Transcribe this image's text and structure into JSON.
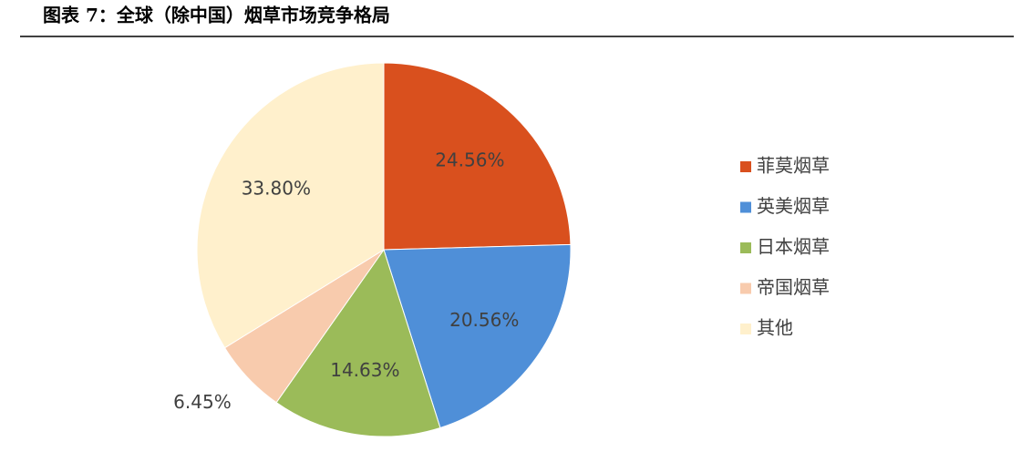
{
  "chart_data": {
    "type": "pie",
    "title": "图表 7：全球（除中国）烟草市场竞争格局",
    "categories": [
      "菲莫烟草",
      "英美烟草",
      "日本烟草",
      "帝国烟草",
      "其他"
    ],
    "values": [
      24.56,
      20.56,
      14.63,
      6.45,
      33.8
    ],
    "value_labels": [
      "24.56%",
      "20.56%",
      "14.63%",
      "6.45%",
      "33.80%"
    ],
    "colors": [
      "#d9501e",
      "#4f8fd8",
      "#9bbb59",
      "#f8cbad",
      "#fff0cc"
    ]
  }
}
